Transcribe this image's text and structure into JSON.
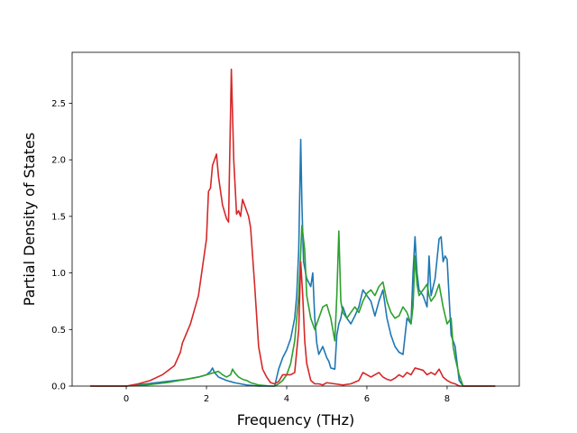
{
  "chart_data": {
    "type": "line",
    "title": "",
    "xlabel": "Frequency (THz)",
    "ylabel": "Partial Density of States",
    "xlim": [
      -1.35,
      9.8
    ],
    "ylim": [
      0.0,
      2.95
    ],
    "xticks": [
      0,
      2,
      4,
      6,
      8
    ],
    "yticks": [
      0.0,
      0.5,
      1.0,
      1.5,
      2.0,
      2.5
    ],
    "xtick_labels": [
      "0",
      "2",
      "4",
      "6",
      "8"
    ],
    "ytick_labels": [
      "0.0",
      "0.5",
      "1.0",
      "1.5",
      "2.0",
      "2.5"
    ],
    "grid": false,
    "legend": null,
    "series": [
      {
        "color": "#1f77b4",
        "x": [
          -0.9,
          0.0,
          0.5,
          1.0,
          1.5,
          1.8,
          2.0,
          2.1,
          2.15,
          2.2,
          2.3,
          2.5,
          2.7,
          3.0,
          3.3,
          3.6,
          3.7,
          3.8,
          3.9,
          4.0,
          4.1,
          4.2,
          4.25,
          4.3,
          4.35,
          4.38,
          4.42,
          4.5,
          4.6,
          4.65,
          4.7,
          4.75,
          4.8,
          4.9,
          5.0,
          5.05,
          5.1,
          5.2,
          5.25,
          5.3,
          5.35,
          5.4,
          5.5,
          5.6,
          5.7,
          5.8,
          5.9,
          6.0,
          6.1,
          6.2,
          6.3,
          6.4,
          6.5,
          6.6,
          6.7,
          6.8,
          6.9,
          7.0,
          7.1,
          7.15,
          7.2,
          7.25,
          7.3,
          7.4,
          7.5,
          7.55,
          7.6,
          7.7,
          7.8,
          7.85,
          7.9,
          7.95,
          8.0,
          8.1,
          8.2,
          8.25,
          8.3,
          8.4,
          9.2
        ],
        "y": [
          0.0,
          0.0,
          0.02,
          0.04,
          0.06,
          0.08,
          0.1,
          0.13,
          0.16,
          0.12,
          0.08,
          0.05,
          0.03,
          0.01,
          0.0,
          0.0,
          0.0,
          0.15,
          0.25,
          0.32,
          0.42,
          0.6,
          0.8,
          1.2,
          2.18,
          1.6,
          1.1,
          0.95,
          0.88,
          1.0,
          0.6,
          0.38,
          0.28,
          0.35,
          0.25,
          0.22,
          0.16,
          0.15,
          0.45,
          0.55,
          0.6,
          0.7,
          0.6,
          0.55,
          0.62,
          0.7,
          0.85,
          0.8,
          0.75,
          0.62,
          0.75,
          0.85,
          0.6,
          0.45,
          0.35,
          0.3,
          0.28,
          0.6,
          0.55,
          1.0,
          1.32,
          1.0,
          0.85,
          0.8,
          0.7,
          1.15,
          0.8,
          0.95,
          1.3,
          1.32,
          1.1,
          1.15,
          1.12,
          0.45,
          0.35,
          0.2,
          0.05,
          0.0,
          0.0
        ]
      },
      {
        "color": "#2ca02c",
        "x": [
          -0.9,
          0.0,
          0.5,
          1.0,
          1.5,
          1.8,
          2.0,
          2.2,
          2.3,
          2.4,
          2.5,
          2.6,
          2.65,
          2.7,
          2.8,
          2.9,
          3.0,
          3.1,
          3.3,
          3.6,
          3.7,
          3.8,
          3.9,
          4.0,
          4.1,
          4.2,
          4.3,
          4.38,
          4.45,
          4.5,
          4.6,
          4.7,
          4.8,
          4.9,
          5.0,
          5.1,
          5.15,
          5.2,
          5.25,
          5.3,
          5.35,
          5.4,
          5.5,
          5.6,
          5.7,
          5.8,
          5.9,
          6.0,
          6.1,
          6.2,
          6.3,
          6.4,
          6.5,
          6.6,
          6.7,
          6.8,
          6.9,
          7.0,
          7.1,
          7.15,
          7.2,
          7.25,
          7.3,
          7.4,
          7.5,
          7.55,
          7.6,
          7.7,
          7.8,
          7.9,
          8.0,
          8.1,
          8.15,
          8.2,
          8.3,
          8.4,
          9.2
        ],
        "y": [
          0.0,
          0.0,
          0.01,
          0.03,
          0.06,
          0.08,
          0.1,
          0.12,
          0.13,
          0.1,
          0.08,
          0.1,
          0.15,
          0.12,
          0.08,
          0.06,
          0.05,
          0.03,
          0.01,
          0.0,
          0.0,
          0.02,
          0.05,
          0.1,
          0.2,
          0.4,
          0.8,
          1.42,
          1.2,
          0.8,
          0.6,
          0.5,
          0.6,
          0.7,
          0.72,
          0.6,
          0.5,
          0.4,
          0.8,
          1.37,
          0.75,
          0.65,
          0.6,
          0.65,
          0.7,
          0.65,
          0.75,
          0.82,
          0.85,
          0.8,
          0.88,
          0.92,
          0.75,
          0.65,
          0.6,
          0.62,
          0.7,
          0.65,
          0.55,
          0.7,
          1.15,
          0.9,
          0.8,
          0.85,
          0.9,
          0.8,
          0.75,
          0.8,
          0.9,
          0.7,
          0.55,
          0.6,
          0.35,
          0.25,
          0.1,
          0.0,
          0.0
        ]
      },
      {
        "color": "#d62728",
        "x": [
          -0.9,
          0.0,
          0.3,
          0.6,
          0.9,
          1.2,
          1.35,
          1.4,
          1.6,
          1.8,
          2.0,
          2.05,
          2.1,
          2.15,
          2.25,
          2.3,
          2.4,
          2.5,
          2.55,
          2.62,
          2.68,
          2.75,
          2.8,
          2.85,
          2.9,
          2.95,
          3.0,
          3.05,
          3.1,
          3.2,
          3.3,
          3.4,
          3.5,
          3.6,
          3.7,
          3.8,
          3.9,
          4.0,
          4.1,
          4.2,
          4.3,
          4.35,
          4.4,
          4.45,
          4.5,
          4.6,
          4.7,
          4.8,
          4.9,
          5.0,
          5.2,
          5.4,
          5.6,
          5.8,
          5.9,
          6.0,
          6.1,
          6.2,
          6.3,
          6.4,
          6.5,
          6.6,
          6.7,
          6.8,
          6.9,
          7.0,
          7.1,
          7.2,
          7.3,
          7.4,
          7.5,
          7.6,
          7.7,
          7.8,
          7.9,
          8.0,
          8.1,
          8.2,
          8.3,
          8.4,
          9.2
        ],
        "y": [
          0.0,
          0.0,
          0.02,
          0.05,
          0.1,
          0.18,
          0.3,
          0.38,
          0.55,
          0.8,
          1.3,
          1.72,
          1.75,
          1.95,
          2.05,
          1.85,
          1.6,
          1.48,
          1.45,
          2.8,
          2.0,
          1.52,
          1.55,
          1.5,
          1.65,
          1.6,
          1.55,
          1.5,
          1.4,
          0.9,
          0.35,
          0.15,
          0.08,
          0.03,
          0.02,
          0.04,
          0.1,
          0.1,
          0.1,
          0.12,
          0.5,
          1.1,
          0.8,
          0.4,
          0.2,
          0.05,
          0.02,
          0.02,
          0.01,
          0.03,
          0.02,
          0.01,
          0.02,
          0.05,
          0.12,
          0.1,
          0.08,
          0.1,
          0.12,
          0.08,
          0.06,
          0.05,
          0.07,
          0.1,
          0.08,
          0.12,
          0.1,
          0.16,
          0.15,
          0.14,
          0.1,
          0.12,
          0.1,
          0.15,
          0.08,
          0.05,
          0.03,
          0.02,
          0.0,
          0.0,
          0.0
        ]
      }
    ]
  }
}
